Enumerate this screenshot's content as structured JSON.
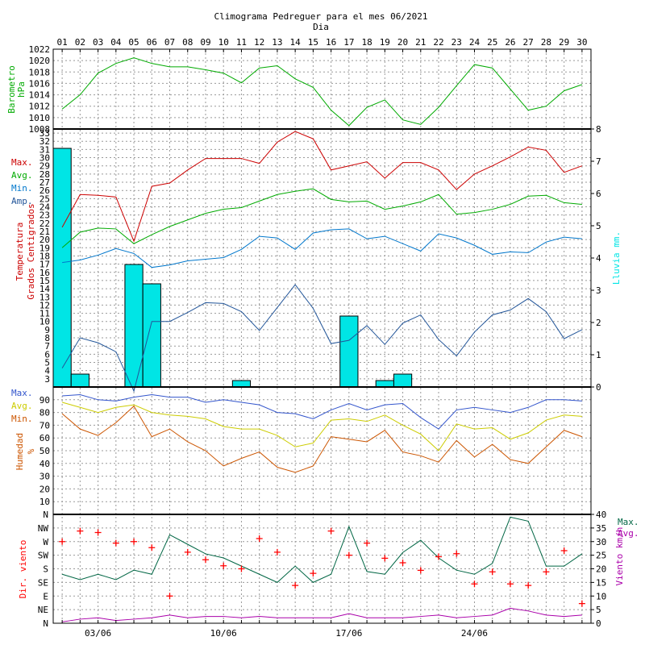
{
  "chart_data": {
    "type": "multi-panel climogram",
    "title": "Climograma Pedreguer para el mes 06/2021",
    "xlabel": "Dia",
    "days": [
      "01",
      "02",
      "03",
      "04",
      "05",
      "06",
      "07",
      "08",
      "09",
      "10",
      "11",
      "12",
      "13",
      "14",
      "15",
      "16",
      "17",
      "18",
      "19",
      "20",
      "21",
      "22",
      "23",
      "24",
      "25",
      "26",
      "27",
      "28",
      "29",
      "30"
    ],
    "date_ticks": [
      "03/06",
      "10/06",
      "17/06",
      "24/06"
    ],
    "colors": {
      "pressure": "#00aa00",
      "tmax": "#cc0000",
      "tavg": "#00aa00",
      "tmin": "#0077cc",
      "tamp": "#225599",
      "rain": "#00e5e5",
      "hmax": "#3355cc",
      "havg": "#cccc00",
      "hmin": "#cc5500",
      "wind_dir": "#ff0000",
      "wind_max": "#006644",
      "wind_avg": "#aa00aa"
    },
    "pressure": {
      "ylabel_line1": "Barometro",
      "ylabel_line2": "hPa",
      "ylim": [
        1008,
        1022
      ],
      "ticks": [
        1008,
        1010,
        1012,
        1014,
        1016,
        1018,
        1020,
        1022
      ],
      "values": [
        1011.5,
        1014,
        1017.8,
        1019.5,
        1020.5,
        1019.5,
        1018.9,
        1018.9,
        1018.4,
        1017.8,
        1016.1,
        1018.7,
        1019.1,
        1016.8,
        1015.3,
        1011.3,
        1008.6,
        1011.8,
        1013.1,
        1009.6,
        1008.8,
        1011.8,
        1015.6,
        1019.3,
        1018.7,
        1015,
        1011.3,
        1012,
        1014.7,
        1015.8
      ]
    },
    "temperature": {
      "ylabel_line1": "Temperatura",
      "ylabel_line2": "Grados Centigrados",
      "ylim": [
        2,
        33.5
      ],
      "ticks": [
        3,
        4,
        5,
        6,
        7,
        8,
        9,
        10,
        11,
        12,
        13,
        14,
        15,
        16,
        17,
        18,
        19,
        20,
        21,
        22,
        23,
        24,
        25,
        26,
        27,
        28,
        29,
        30,
        31,
        32,
        33
      ],
      "legend": [
        "Max.",
        "Avg.",
        "Min.",
        "Amp."
      ],
      "max": [
        21.5,
        25.5,
        25.4,
        25.2,
        19.8,
        26.5,
        26.9,
        28.5,
        29.9,
        29.9,
        29.9,
        29.3,
        31.9,
        33.2,
        32.3,
        28.5,
        29,
        29.5,
        27.5,
        29.4,
        29.4,
        28.5,
        26.1,
        28,
        29,
        30.1,
        31.3,
        30.9,
        28.2,
        29
      ],
      "avg": [
        19,
        20.9,
        21.4,
        21.3,
        19.5,
        20.6,
        21.6,
        22.4,
        23.2,
        23.7,
        23.9,
        24.7,
        25.5,
        25.9,
        26.2,
        24.9,
        24.6,
        24.7,
        23.7,
        24.1,
        24.6,
        25.5,
        23.1,
        23.3,
        23.7,
        24.3,
        25.3,
        25.4,
        24.5,
        24.3
      ],
      "min": [
        17.2,
        17.5,
        18.1,
        18.9,
        18.3,
        16.6,
        16.9,
        17.4,
        17.6,
        17.8,
        18.8,
        20.4,
        20.2,
        18.8,
        20.8,
        21.2,
        21.3,
        20.1,
        20.4,
        19.5,
        18.6,
        20.7,
        20.2,
        19.3,
        18.2,
        18.5,
        18.4,
        19.7,
        20.3,
        20.1
      ],
      "amp": [
        4.3,
        8,
        7.4,
        6.3,
        1.5,
        10,
        10,
        11.1,
        12.3,
        12.2,
        11.2,
        8.9,
        11.7,
        14.5,
        11.6,
        7.3,
        7.7,
        9.5,
        7.2,
        9.8,
        10.8,
        7.8,
        5.8,
        8.7,
        10.8,
        11.4,
        12.8,
        11.2,
        7.9,
        9
      ]
    },
    "rain": {
      "ylabel": "Lluvia mm.",
      "ylim": [
        0,
        8
      ],
      "ticks": [
        0,
        1,
        2,
        3,
        4,
        5,
        6,
        7,
        8
      ],
      "values": [
        7.4,
        0.4,
        0,
        0,
        3.8,
        3.2,
        0,
        0,
        0,
        0,
        0.2,
        0,
        0,
        0,
        0,
        0,
        2.2,
        0,
        0.2,
        0.4,
        0,
        0,
        0,
        0,
        0,
        0,
        0,
        0,
        0,
        0
      ]
    },
    "humidity": {
      "ylabel_line1": "Humedad",
      "ylabel_line2": "%",
      "ylim": [
        0,
        100
      ],
      "ticks": [
        10,
        20,
        30,
        40,
        50,
        60,
        70,
        80,
        90
      ],
      "legend": [
        "Max.",
        "Avg.",
        "Min."
      ],
      "max": [
        93,
        94,
        90,
        89,
        92,
        94,
        92,
        92,
        88,
        90,
        88,
        86,
        80,
        79,
        75,
        82,
        87,
        82,
        86,
        87,
        76,
        67,
        82,
        84,
        82,
        80,
        84,
        90,
        90,
        89
      ],
      "avg": [
        88,
        84,
        80,
        84,
        86,
        80,
        78,
        77,
        75,
        69,
        67,
        67,
        62,
        53,
        56,
        74,
        75,
        73,
        78,
        70,
        63,
        50,
        71,
        67,
        68,
        59,
        64,
        74,
        78,
        77
      ],
      "min": [
        79,
        67,
        62,
        72,
        85,
        61,
        67,
        57,
        50,
        38,
        44,
        49,
        37,
        33,
        38,
        61,
        59,
        57,
        66,
        49,
        46,
        41,
        58,
        45,
        55,
        43,
        40,
        53,
        66,
        61
      ]
    },
    "wind": {
      "dir_ylabel": "Dir. viento",
      "speed_ylabel": "Viento km/h",
      "dir_ticks": [
        "N",
        "NE",
        "E",
        "SE",
        "S",
        "SW",
        "W",
        "NW",
        "N"
      ],
      "speed_ylim": [
        0,
        40
      ],
      "speed_ticks": [
        0,
        5,
        10,
        15,
        20,
        25,
        30,
        35,
        40
      ],
      "legend": [
        "Max.",
        "Avg."
      ],
      "direction_deg": [
        270,
        305,
        300,
        265,
        270,
        250,
        90,
        235,
        210,
        190,
        180,
        280,
        235,
        125,
        165,
        305,
        225,
        265,
        215,
        200,
        175,
        220,
        230,
        130,
        170,
        130,
        125,
        170,
        240,
        65
      ],
      "max": [
        18,
        16,
        18,
        16,
        19.5,
        18,
        32.5,
        29,
        25.5,
        24,
        21,
        18,
        15,
        21,
        15,
        18,
        35.5,
        19,
        18,
        26,
        30.5,
        24,
        19.5,
        18,
        22,
        39,
        37.5,
        21,
        21,
        25.5
      ],
      "avg": [
        0.5,
        1.5,
        2,
        1,
        1.5,
        2,
        3,
        2,
        2.5,
        2.5,
        2,
        2.5,
        2,
        2,
        2,
        2,
        3.5,
        2,
        2,
        2,
        2.5,
        3,
        2,
        2.5,
        3,
        5.5,
        4.5,
        3,
        2.5,
        3
      ]
    }
  }
}
